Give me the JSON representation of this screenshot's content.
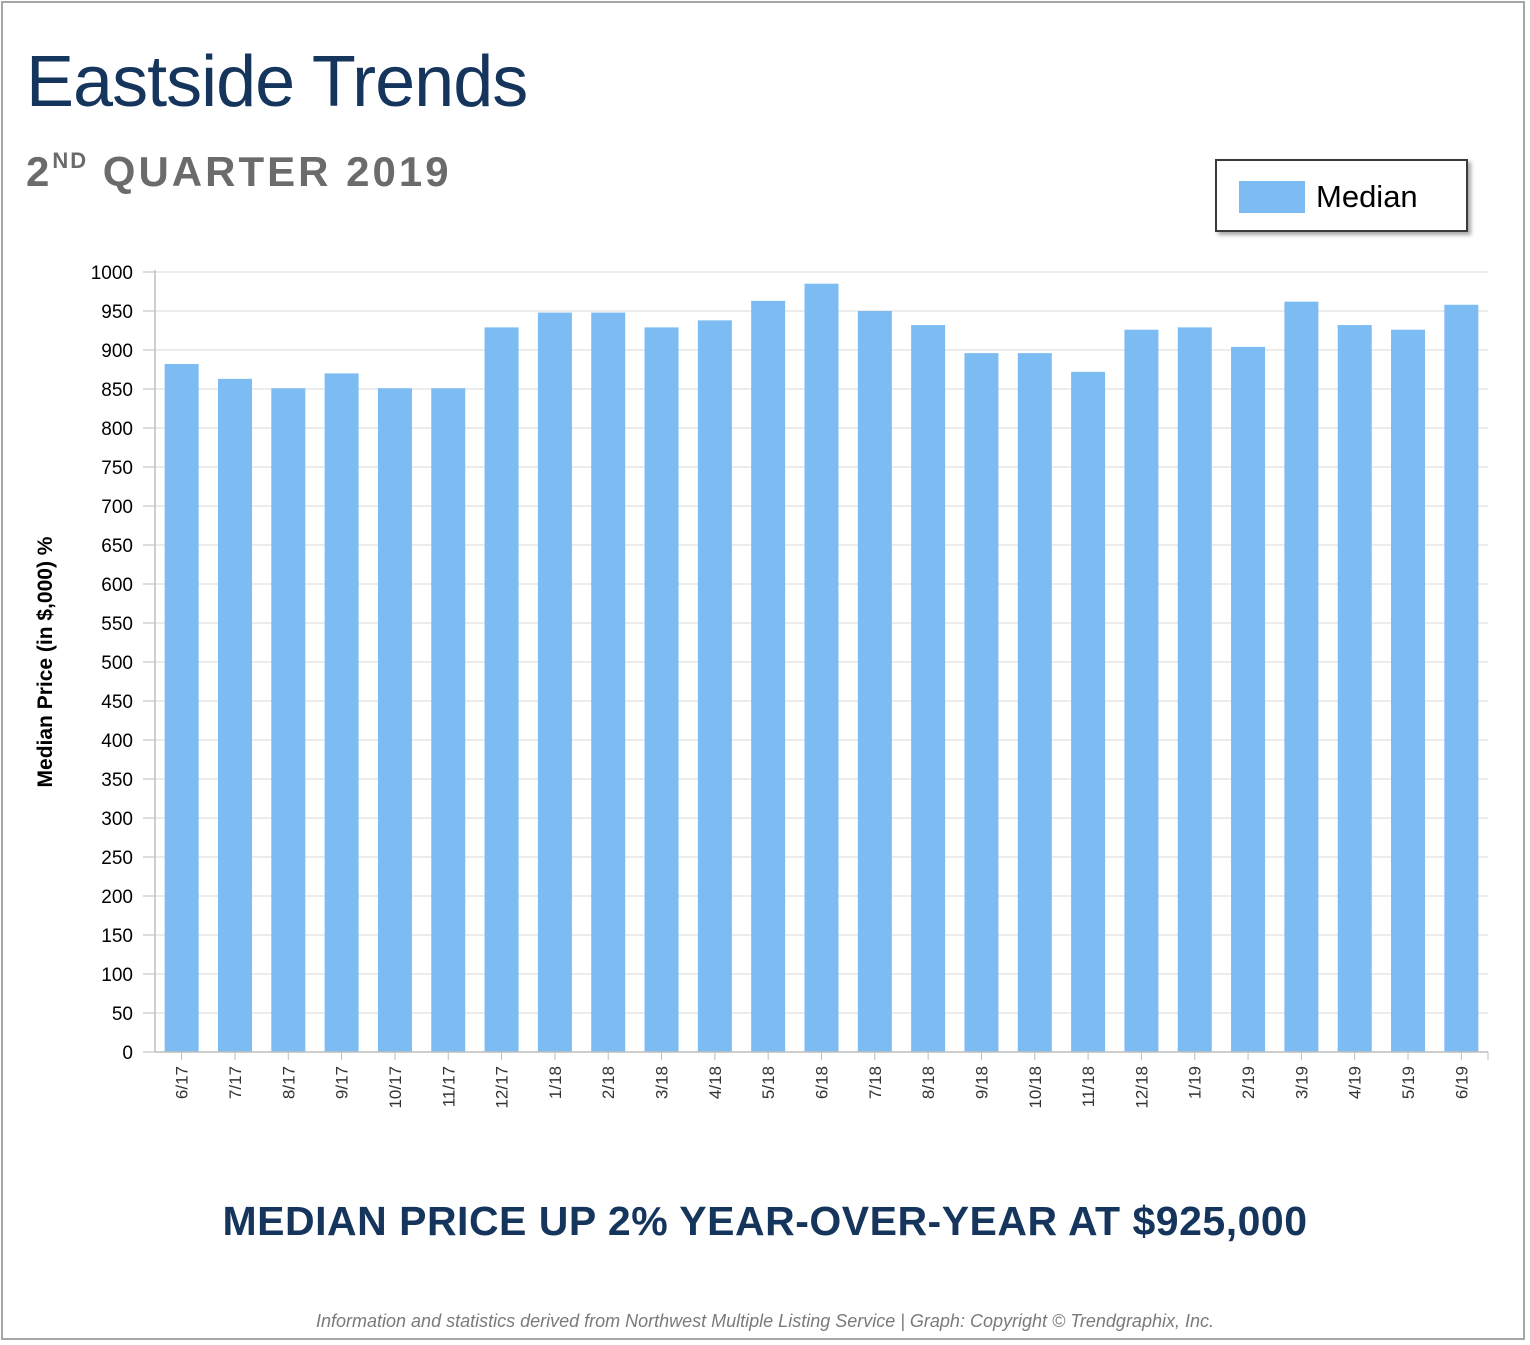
{
  "header": {
    "title": "Eastside Trends",
    "subtitle_num": "2",
    "subtitle_sup": "ND",
    "subtitle_rest": " QUARTER 2019"
  },
  "legend": {
    "label": "Median"
  },
  "headline": "MEDIAN PRICE UP 2% YEAR-OVER-YEAR AT $925,000",
  "footnote": "Information and statistics derived from Northwest Multiple Listing Service  |  Graph: Copyright © Trendgraphix, Inc.",
  "colors": {
    "bar": "#7dbcf2",
    "grid": "#e6e6e6",
    "title": "#16355c",
    "subtitle": "#6b6b6b"
  },
  "chart_data": {
    "type": "bar",
    "ylabel": "Median Price (in $,000) %",
    "xlabel": "",
    "ylim": [
      0,
      1000
    ],
    "ytick_step": 50,
    "grid": true,
    "legend_position": "top-right",
    "categories": [
      "6/17",
      "7/17",
      "8/17",
      "9/17",
      "10/17",
      "11/17",
      "12/17",
      "1/18",
      "2/18",
      "3/18",
      "4/18",
      "5/18",
      "6/18",
      "7/18",
      "8/18",
      "9/18",
      "10/18",
      "11/18",
      "12/18",
      "1/19",
      "2/19",
      "3/19",
      "4/19",
      "5/19",
      "6/19"
    ],
    "series": [
      {
        "name": "Median",
        "values": [
          882,
          863,
          851,
          870,
          851,
          851,
          929,
          948,
          948,
          929,
          938,
          963,
          985,
          950,
          932,
          896,
          896,
          872,
          926,
          929,
          904,
          962,
          932,
          926,
          958
        ]
      }
    ]
  }
}
